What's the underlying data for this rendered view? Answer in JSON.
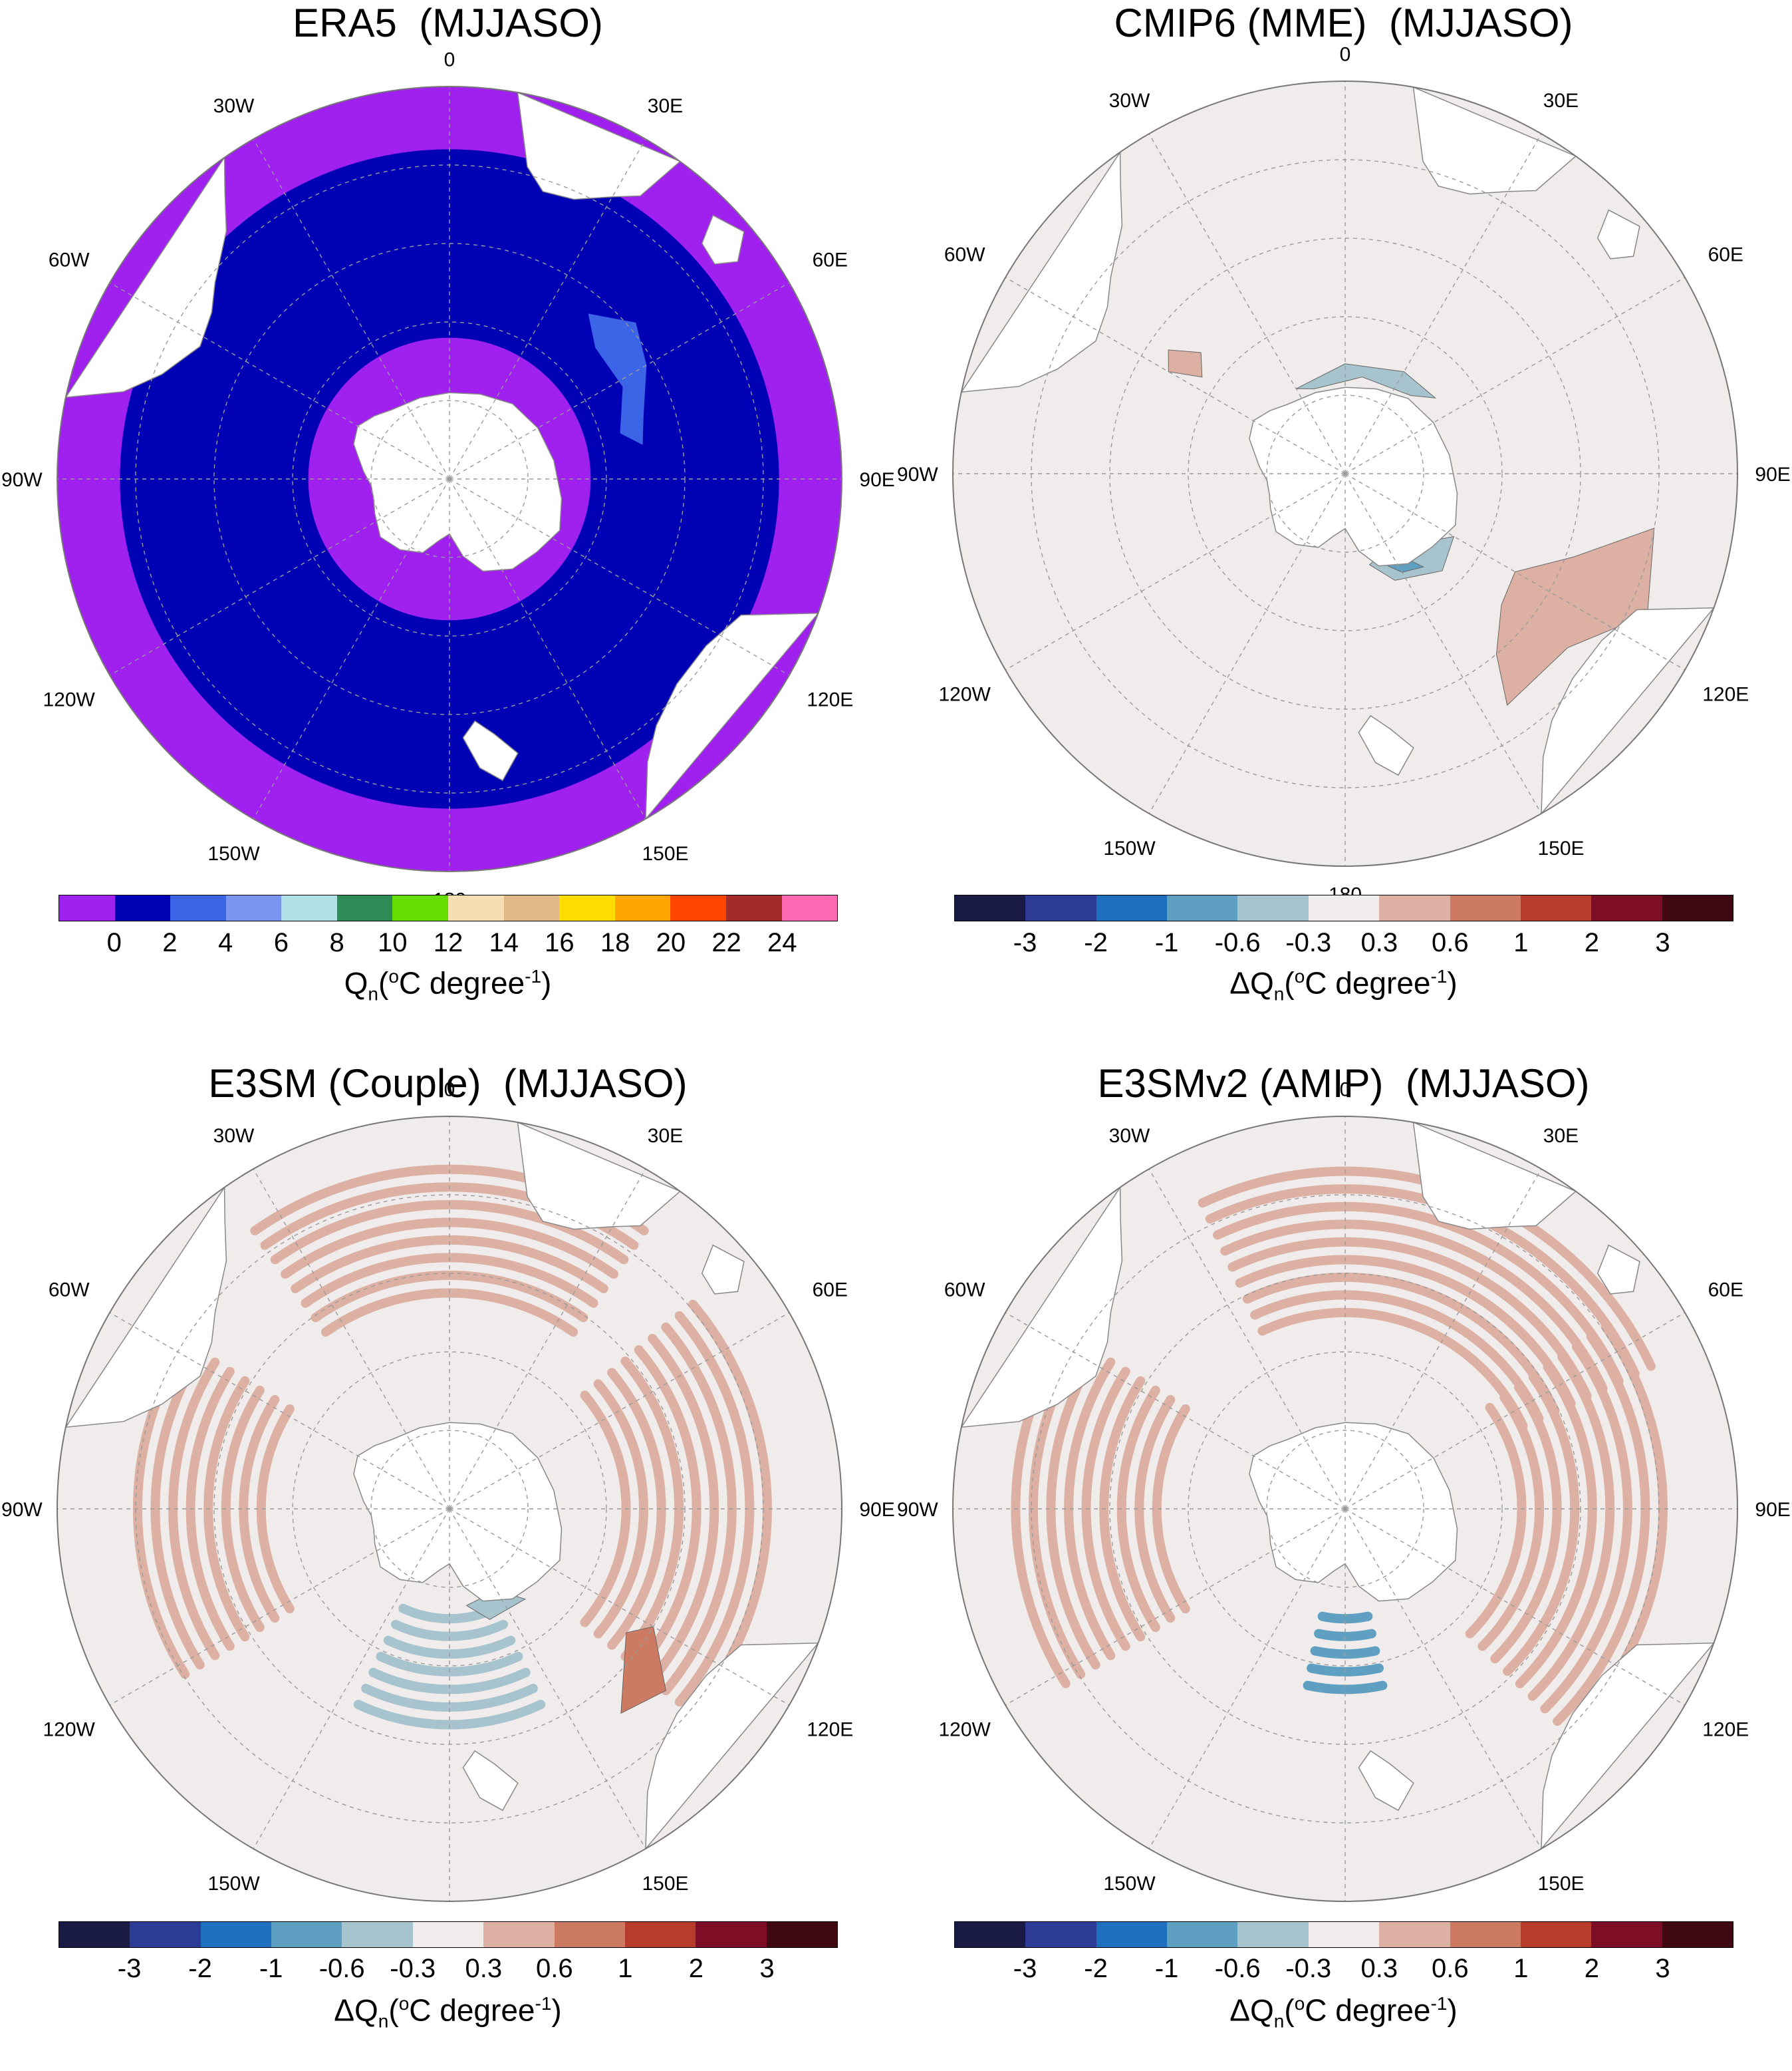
{
  "panels": [
    {
      "id": "era5",
      "title": "ERA5  (MJJASO)",
      "kind": "absolute",
      "colorbar": {
        "colors": [
          "#a020f0",
          "#0000b4",
          "#3c64e6",
          "#7896f0",
          "#b0e0e6",
          "#2e8b57",
          "#66dd00",
          "#f5deb3",
          "#deb887",
          "#ffdd00",
          "#ffa500",
          "#ff4500",
          "#a52a2a",
          "#ff69b4"
        ],
        "ticks": [
          "0",
          "2",
          "4",
          "6",
          "8",
          "10",
          "12",
          "14",
          "16",
          "18",
          "20",
          "22",
          "24"
        ],
        "label_main": "Q",
        "label_sub": "n",
        "label_open": "(",
        "label_sup_o": "o",
        "label_mid": "C degree",
        "label_sup": "-1",
        "label_close": ")"
      }
    },
    {
      "id": "cmip6",
      "title": "CMIP6 (MME)  (MJJASO)",
      "kind": "diff",
      "colorbar": {
        "colors": [
          "#191a45",
          "#2c3c96",
          "#1f6fbf",
          "#5fa0c2",
          "#a7c3cd",
          "#efeceb",
          "#dcb1a3",
          "#cc7a62",
          "#b83c2c",
          "#7e0e26",
          "#400811"
        ],
        "ticks": [
          "-3",
          "-2",
          "-1",
          "-0.6",
          "-0.3",
          "0.3",
          "0.6",
          "1",
          "2",
          "3"
        ],
        "label_main": "ΔQ",
        "label_sub": "n",
        "label_open": "(",
        "label_sup_o": "o",
        "label_mid": "C degree",
        "label_sup": "-1",
        "label_close": ")"
      }
    },
    {
      "id": "e3sm-couple",
      "title": "E3SM (Couple)  (MJJASO)",
      "kind": "diff",
      "colorbar": {
        "colors": [
          "#191a45",
          "#2c3c96",
          "#1f6fbf",
          "#5fa0c2",
          "#a7c3cd",
          "#efeceb",
          "#dcb1a3",
          "#cc7a62",
          "#b83c2c",
          "#7e0e26",
          "#400811"
        ],
        "ticks": [
          "-3",
          "-2",
          "-1",
          "-0.6",
          "-0.3",
          "0.3",
          "0.6",
          "1",
          "2",
          "3"
        ],
        "label_main": "ΔQ",
        "label_sub": "n",
        "label_open": "(",
        "label_sup_o": "o",
        "label_mid": "C degree",
        "label_sup": "-1",
        "label_close": ")"
      }
    },
    {
      "id": "e3smv2-amip",
      "title": "E3SMv2 (AMIP)  (MJJASO)",
      "kind": "diff",
      "colorbar": {
        "colors": [
          "#191a45",
          "#2c3c96",
          "#1f6fbf",
          "#5fa0c2",
          "#a7c3cd",
          "#efeceb",
          "#dcb1a3",
          "#cc7a62",
          "#b83c2c",
          "#7e0e26",
          "#400811"
        ],
        "ticks": [
          "-3",
          "-2",
          "-1",
          "-0.6",
          "-0.3",
          "0.3",
          "0.6",
          "1",
          "2",
          "3"
        ],
        "label_main": "ΔQ",
        "label_sub": "n",
        "label_open": "(",
        "label_sup_o": "o",
        "label_mid": "C degree",
        "label_sup": "-1",
        "label_close": ")"
      }
    }
  ],
  "longitude_labels": {
    "top": "0",
    "bottom": "180",
    "left": "90W",
    "right": "90E",
    "ul1": "30W",
    "ul2": "60W",
    "ur1": "30E",
    "ur2": "60E",
    "ll1": "120W",
    "ll2": "150W",
    "lr1": "120E",
    "lr2": "150E"
  },
  "colors": {
    "land": "#ffffff",
    "neutral_ocean": "#efeceb",
    "era5_outer": "#a020f0",
    "era5_inner": "#0000b4",
    "era5_patch": "#3c64e6",
    "warm": "#dcb1a3",
    "warm_strong": "#cc7a62",
    "cool": "#a7c3cd",
    "cool_strong": "#5fa0c2"
  }
}
